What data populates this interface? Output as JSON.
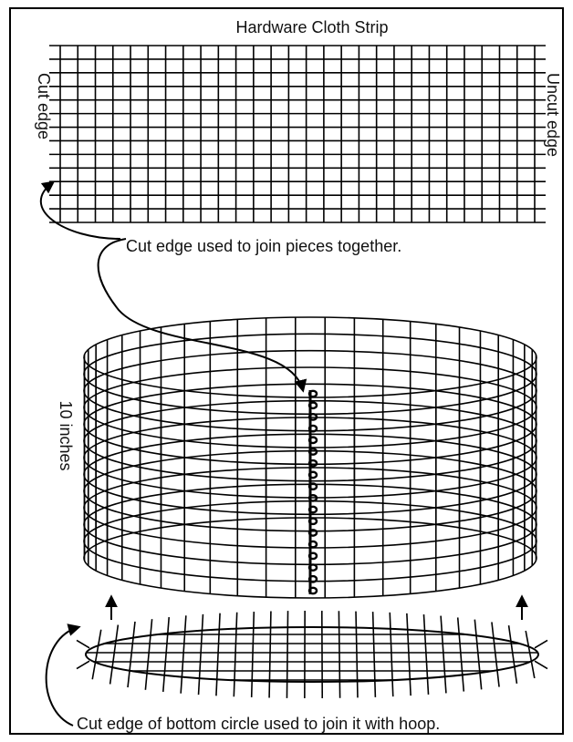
{
  "diagram": {
    "title": "Hardware Cloth Strip",
    "left_edge_label": "Cut edge",
    "right_edge_label": "Uncut edge",
    "join_note": "Cut edge used to join pieces together.",
    "height_label": "10 inches",
    "bottom_note": "Cut edge of bottom circle used to join it with hoop.",
    "colors": {
      "line": "#000000",
      "background": "#ffffff"
    }
  }
}
